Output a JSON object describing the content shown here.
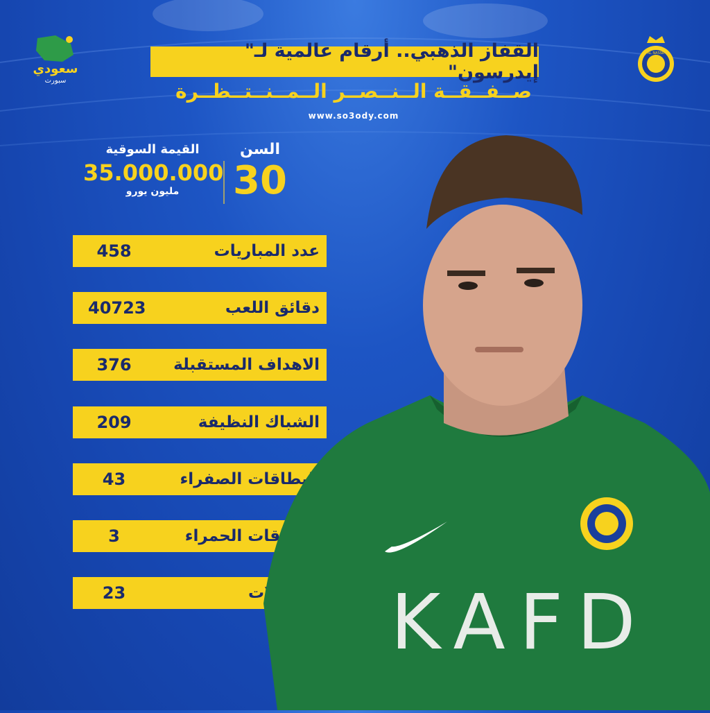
{
  "header": {
    "title": "القفاز الذهبي.. أرقام عالمية لـ\" إيدرسون\"",
    "subtitle": "صــفــقــة الــنــصــر الــمــنــتــظــرة",
    "website": "www.so3ody.com"
  },
  "logos": {
    "left": "سعودي سبورت",
    "right": "AL NASSR FOOTBALL CLUB"
  },
  "profile": {
    "age_label": "السن",
    "age_value": "30",
    "market_value_label": "القيمة السوقية",
    "market_value": "35.000.000",
    "market_value_unit": "مليون يورو"
  },
  "stats": [
    {
      "label": "عدد المباريات",
      "value": "458"
    },
    {
      "label": "دقائق اللعب",
      "value": "40723"
    },
    {
      "label": "الاهداف المستقبلة",
      "value": "376"
    },
    {
      "label": "الشباك النظيفة",
      "value": "209"
    },
    {
      "label": "البطاقات الصفراء",
      "value": "43"
    },
    {
      "label": "البطاقات الحمراء",
      "value": "3"
    },
    {
      "label": "البطولات",
      "value": "23"
    }
  ],
  "jersey": {
    "sponsor": "KAFD"
  },
  "colors": {
    "accent": "#f7d21e",
    "background": "#1a50be",
    "text_dark": "#1a2a6b",
    "jersey": "#1f7a3e"
  }
}
